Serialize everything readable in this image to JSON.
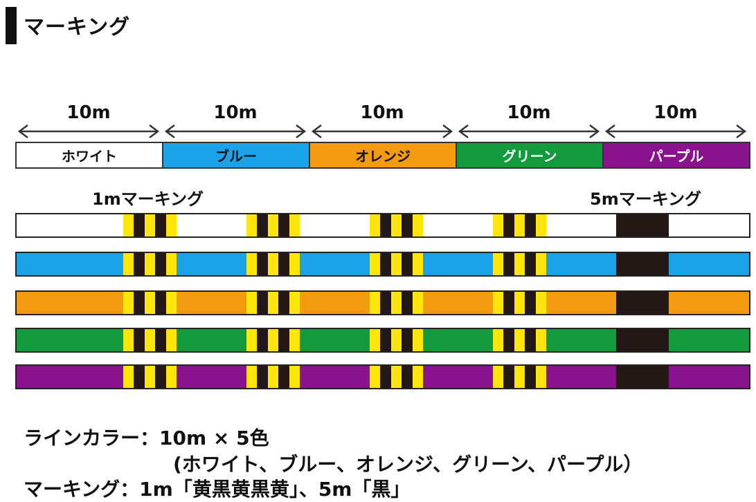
{
  "header": {
    "title": "マーキング"
  },
  "segments": [
    {
      "length_label": "10m",
      "name": "ホワイト",
      "color": "#ffffff",
      "text_color": "#111111"
    },
    {
      "length_label": "10m",
      "name": "ブルー",
      "color": "#1aa3e8",
      "text_color": "#111111"
    },
    {
      "length_label": "10m",
      "name": "オレンジ",
      "color": "#f29a10",
      "text_color": "#111111"
    },
    {
      "length_label": "10m",
      "name": "グリーン",
      "color": "#129a3c",
      "text_color": "#ffffff"
    },
    {
      "length_label": "10m",
      "name": "パープル",
      "color": "#8a128c",
      "text_color": "#ffffff"
    }
  ],
  "marking_labels": {
    "one_meter": "1mマーキング",
    "five_meter": "5mマーキング"
  },
  "marking_colors": {
    "yellow": "#ffe60a",
    "black": "#231815"
  },
  "footer": {
    "line1": "ラインカラー：10m × 5色",
    "line2": "(ホワイト、ブルー、オレンジ、グリーン、パープル）",
    "line3": "マーキング：1m「黄黒黄黒黄」、5m「黒」"
  }
}
